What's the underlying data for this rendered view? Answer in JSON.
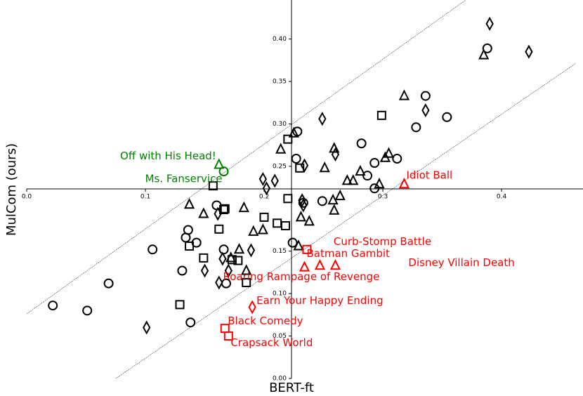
{
  "chart_data": {
    "type": "scatter",
    "x_label": "BERT-ft",
    "y_label": "MulCom (ours)",
    "xlim": [
      0,
      0.4686
    ],
    "ylim": [
      0,
      0.446
    ],
    "xticks": [
      {
        "value": 0,
        "label": "0.0"
      },
      0.1,
      {
        "value": 0.2,
        "label": "0.2"
      },
      {
        "value": 0.3,
        "label": "0.3"
      },
      0.4
    ],
    "yticks": [
      {
        "value": 0,
        "label": "0.00"
      },
      0.05,
      {
        "value": 0.1,
        "label": "0.10"
      },
      0.15,
      0.25,
      {
        "value": 0.3,
        "label": "0.30"
      },
      0.35,
      {
        "value": 0.4,
        "label": "0.40"
      }
    ],
    "series": [
      {
        "marker": "circle",
        "color": "#000000",
        "x": [
          0.022,
          0.051,
          0.069,
          0.106,
          0.136,
          0.134,
          0.143,
          0.131,
          0.138,
          0.16,
          0.166,
          0.168,
          0.228,
          0.227,
          0.224,
          0.233,
          0.249,
          0.282,
          0.287,
          0.293,
          0.293,
          0.312,
          0.328,
          0.336,
          0.354,
          0.388
        ],
        "values": [
          0.086,
          0.08,
          0.112,
          0.152,
          0.175,
          0.166,
          0.16,
          0.127,
          0.066,
          0.204,
          0.152,
          0.112,
          0.291,
          0.259,
          0.16,
          0.207,
          0.209,
          0.277,
          0.239,
          0.254,
          0.224,
          0.259,
          0.296,
          0.333,
          0.308,
          0.389
        ]
      },
      {
        "marker": "triangle",
        "color": "#000000",
        "x": [
          0.137,
          0.149,
          0.183,
          0.179,
          0.191,
          0.199,
          0.185,
          0.214,
          0.225,
          0.229,
          0.231,
          0.238,
          0.251,
          0.259,
          0.258,
          0.259,
          0.264,
          0.27,
          0.275,
          0.281,
          0.297,
          0.302,
          0.305,
          0.318,
          0.385,
          0.172
        ],
        "values": [
          0.205,
          0.194,
          0.201,
          0.152,
          0.173,
          0.175,
          0.127,
          0.27,
          0.289,
          0.156,
          0.19,
          0.185,
          0.248,
          0.271,
          0.21,
          0.198,
          0.215,
          0.233,
          0.233,
          0.244,
          0.229,
          0.26,
          0.265,
          0.333,
          0.381,
          0.142
        ]
      },
      {
        "marker": "square",
        "color": "#000000",
        "x": [
          0.157,
          0.166,
          0.167,
          0.162,
          0.137,
          0.149,
          0.173,
          0.178,
          0.185,
          0.129,
          0.2,
          0.211,
          0.218,
          0.22,
          0.22,
          0.23,
          0.299
        ],
        "values": [
          0.227,
          0.199,
          0.2,
          0.176,
          0.156,
          0.142,
          0.14,
          0.139,
          0.113,
          0.087,
          0.19,
          0.183,
          0.18,
          0.212,
          0.282,
          0.248,
          0.31
        ]
      },
      {
        "marker": "diamond",
        "color": "#000000",
        "x": [
          0.101,
          0.15,
          0.161,
          0.162,
          0.17,
          0.189,
          0.199,
          0.202,
          0.209,
          0.232,
          0.233,
          0.234,
          0.249,
          0.26,
          0.336,
          0.39,
          0.423,
          0.165
        ],
        "values": [
          0.06,
          0.127,
          0.194,
          0.113,
          0.127,
          0.151,
          0.235,
          0.224,
          0.233,
          0.21,
          0.204,
          0.251,
          0.306,
          0.264,
          0.316,
          0.418,
          0.385,
          0.141
        ]
      }
    ],
    "annotations": [
      {
        "text": "Off with His Head!",
        "marker": "triangle",
        "color": "#008000",
        "x": 0.162,
        "y": 0.252
      },
      {
        "text": "Ms. Fanservice",
        "marker": "circle",
        "color": "#008000",
        "x": 0.166,
        "y": 0.244
      },
      {
        "text": "Idiot Ball",
        "marker": "triangle",
        "color": "#ff0000",
        "x": 0.318,
        "y": 0.229
      },
      {
        "text": "Curb-Stomp Battle",
        "marker": "square",
        "color": "#ff0000",
        "x": 0.236,
        "y": 0.152
      },
      {
        "text": "Batman Gambit",
        "marker": "triangle",
        "color": "#ff0000",
        "x": 0.234,
        "y": 0.131
      },
      {
        "text": "Roaring Rampage of Revenge",
        "marker": "triangle",
        "color": "#ff0000",
        "x": 0.247,
        "y": 0.133
      },
      {
        "text": "Disney Villain Death",
        "marker": "triangle",
        "color": "#ff0000",
        "x": 0.26,
        "y": 0.133
      },
      {
        "text": "Earn Your Happy Ending",
        "marker": "diamond",
        "color": "#ff0000",
        "x": 0.19,
        "y": 0.084
      },
      {
        "text": "Black Comedy",
        "marker": "square",
        "color": "#ff0000",
        "x": 0.167,
        "y": 0.059
      },
      {
        "text": "Crapsack World",
        "marker": "square",
        "color": "#ff0000",
        "x": 0.17,
        "y": 0.05
      }
    ]
  }
}
